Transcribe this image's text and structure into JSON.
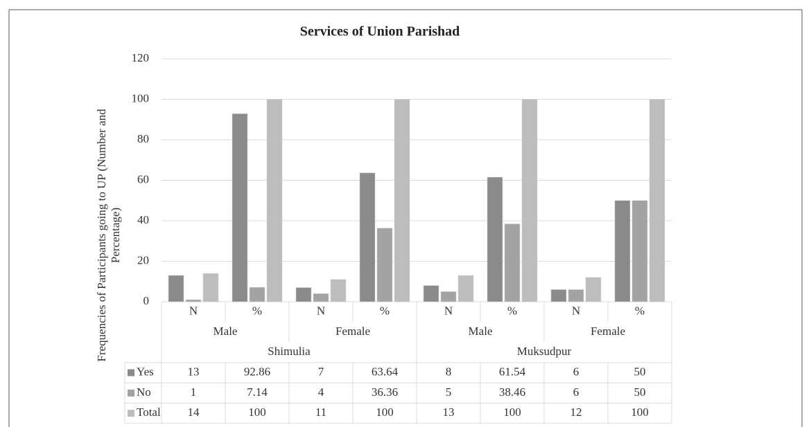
{
  "chart_data": {
    "type": "bar",
    "title": "Services of Union Parishad",
    "ylabel": [
      "Frequencies of Participants going to UP (Number and",
      "Percentage)"
    ],
    "category_groups": [
      {
        "name": "Shimulia",
        "groups": [
          {
            "name": "Male",
            "categories": [
              "N",
              "%"
            ]
          },
          {
            "name": "Female",
            "categories": [
              "N",
              "%"
            ]
          }
        ]
      },
      {
        "name": "Muksudpur",
        "groups": [
          {
            "name": "Male",
            "categories": [
              "N",
              "%"
            ]
          },
          {
            "name": "Female",
            "categories": [
              "N",
              "%"
            ]
          }
        ]
      }
    ],
    "series": [
      {
        "name": "Yes",
        "color": "#8a8a8a",
        "values": [
          13,
          92.86,
          7,
          63.64,
          8,
          61.54,
          6,
          50
        ]
      },
      {
        "name": "No",
        "color": "#a3a3a3",
        "values": [
          1,
          7.14,
          4,
          36.36,
          5,
          38.46,
          6,
          50
        ]
      },
      {
        "name": "Total",
        "color": "#bdbdbd",
        "values": [
          14,
          100,
          11,
          100,
          13,
          100,
          12,
          100
        ]
      }
    ],
    "ylim": [
      0,
      120
    ],
    "yticks": [
      0,
      20,
      40,
      60,
      80,
      100,
      120
    ],
    "grid": true
  }
}
